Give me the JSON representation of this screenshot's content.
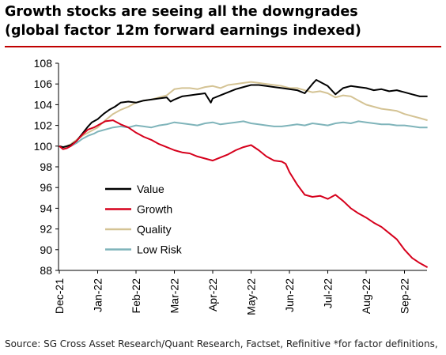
{
  "title_line1": "Growth stocks are seeing all the downgrades",
  "title_line2": "(global factor 12m forward earnings indexed)",
  "source": "Source: SG Cross Asset Research/Quant Research, Factset, Refinitive *for factor definitions,",
  "chart_data": {
    "type": "line",
    "ylim": [
      88,
      108
    ],
    "yticks": [
      88,
      90,
      92,
      94,
      96,
      98,
      100,
      102,
      104,
      106,
      108
    ],
    "xticks": [
      "Dec-21",
      "Jan-22",
      "Feb-22",
      "Mar-22",
      "Apr-22",
      "May-22",
      "Jun-22",
      "Jul-22",
      "Aug-22",
      "Sep-22"
    ],
    "grid": false,
    "legend": "left-bottom",
    "series": [
      {
        "name": "Value",
        "color": "#000000",
        "x": [
          0,
          0.1,
          0.2,
          0.3,
          0.45,
          0.6,
          0.75,
          0.85,
          1.0,
          1.15,
          1.3,
          1.45,
          1.6,
          1.8,
          2.0,
          2.2,
          2.4,
          2.6,
          2.8,
          2.9,
          3.0,
          3.2,
          3.4,
          3.6,
          3.8,
          3.95,
          4.0,
          4.2,
          4.4,
          4.6,
          4.8,
          5.0,
          5.2,
          5.4,
          5.6,
          5.8,
          6.0,
          6.2,
          6.4,
          6.6,
          6.7,
          6.8,
          7.0,
          7.2,
          7.4,
          7.6,
          7.8,
          8.0,
          8.2,
          8.4,
          8.6,
          8.8,
          9.0,
          9.2,
          9.4,
          9.6
        ],
        "y": [
          100.0,
          99.9,
          100.0,
          100.1,
          100.5,
          101.2,
          101.9,
          102.3,
          102.6,
          103.1,
          103.5,
          103.8,
          104.2,
          104.3,
          104.2,
          104.4,
          104.5,
          104.6,
          104.7,
          104.3,
          104.5,
          104.8,
          104.9,
          105.0,
          105.1,
          104.2,
          104.6,
          104.9,
          105.2,
          105.5,
          105.7,
          105.9,
          105.9,
          105.8,
          105.7,
          105.6,
          105.5,
          105.4,
          105.1,
          106.0,
          106.4,
          106.2,
          105.8,
          105.0,
          105.6,
          105.8,
          105.7,
          105.6,
          105.4,
          105.5,
          105.3,
          105.4,
          105.2,
          105.0,
          104.8,
          104.8
        ]
      },
      {
        "name": "Growth",
        "color": "#d6001c",
        "x": [
          0,
          0.1,
          0.2,
          0.3,
          0.45,
          0.6,
          0.75,
          0.9,
          1.0,
          1.2,
          1.4,
          1.6,
          1.8,
          2.0,
          2.2,
          2.4,
          2.6,
          2.8,
          3.0,
          3.2,
          3.4,
          3.6,
          3.8,
          4.0,
          4.2,
          4.4,
          4.6,
          4.8,
          5.0,
          5.2,
          5.4,
          5.6,
          5.8,
          5.9,
          6.0,
          6.2,
          6.4,
          6.6,
          6.8,
          7.0,
          7.2,
          7.4,
          7.6,
          7.8,
          8.0,
          8.2,
          8.4,
          8.6,
          8.8,
          9.0,
          9.2,
          9.4,
          9.6
        ],
        "y": [
          100.0,
          99.7,
          99.8,
          100.0,
          100.5,
          101.1,
          101.6,
          101.8,
          102.0,
          102.4,
          102.5,
          102.1,
          101.8,
          101.3,
          100.9,
          100.6,
          100.2,
          99.9,
          99.6,
          99.4,
          99.3,
          99.0,
          98.8,
          98.6,
          98.9,
          99.2,
          99.6,
          99.9,
          100.1,
          99.6,
          99.0,
          98.6,
          98.5,
          98.3,
          97.5,
          96.3,
          95.3,
          95.1,
          95.2,
          94.9,
          95.3,
          94.7,
          94.0,
          93.5,
          93.1,
          92.6,
          92.2,
          91.6,
          91.0,
          90.0,
          89.2,
          88.7,
          88.3
        ]
      },
      {
        "name": "Quality",
        "color": "#d4c394",
        "x": [
          0,
          0.1,
          0.2,
          0.3,
          0.45,
          0.6,
          0.75,
          0.9,
          1.0,
          1.2,
          1.4,
          1.6,
          1.8,
          2.0,
          2.2,
          2.4,
          2.6,
          2.8,
          3.0,
          3.2,
          3.4,
          3.6,
          3.8,
          4.0,
          4.2,
          4.4,
          4.6,
          4.8,
          5.0,
          5.2,
          5.4,
          5.6,
          5.8,
          6.0,
          6.2,
          6.4,
          6.6,
          6.8,
          7.0,
          7.2,
          7.4,
          7.6,
          7.8,
          8.0,
          8.2,
          8.4,
          8.6,
          8.8,
          9.0,
          9.2,
          9.4,
          9.6
        ],
        "y": [
          100.0,
          99.8,
          100.0,
          100.2,
          100.6,
          101.0,
          101.3,
          101.6,
          101.8,
          102.5,
          103.1,
          103.5,
          103.8,
          104.2,
          104.4,
          104.5,
          104.7,
          104.9,
          105.5,
          105.6,
          105.6,
          105.5,
          105.7,
          105.8,
          105.6,
          105.9,
          106.0,
          106.1,
          106.2,
          106.1,
          106.0,
          105.9,
          105.8,
          105.6,
          105.6,
          105.4,
          105.2,
          105.3,
          105.1,
          104.7,
          104.9,
          104.8,
          104.4,
          104.0,
          103.8,
          103.6,
          103.5,
          103.4,
          103.1,
          102.9,
          102.7,
          102.5
        ]
      },
      {
        "name": "Low Risk",
        "color": "#7fb4ba",
        "x": [
          0,
          0.1,
          0.2,
          0.3,
          0.45,
          0.6,
          0.75,
          0.9,
          1.0,
          1.2,
          1.4,
          1.6,
          1.8,
          2.0,
          2.2,
          2.4,
          2.6,
          2.8,
          3.0,
          3.2,
          3.4,
          3.6,
          3.8,
          4.0,
          4.2,
          4.4,
          4.6,
          4.8,
          5.0,
          5.2,
          5.4,
          5.6,
          5.8,
          6.0,
          6.2,
          6.4,
          6.6,
          6.8,
          7.0,
          7.2,
          7.4,
          7.6,
          7.8,
          8.0,
          8.2,
          8.4,
          8.6,
          8.8,
          9.0,
          9.2,
          9.4,
          9.6
        ],
        "y": [
          100.0,
          99.8,
          99.9,
          100.0,
          100.3,
          100.7,
          101.0,
          101.2,
          101.4,
          101.6,
          101.8,
          101.9,
          101.8,
          102.0,
          101.9,
          101.8,
          102.0,
          102.1,
          102.3,
          102.2,
          102.1,
          102.0,
          102.2,
          102.3,
          102.1,
          102.2,
          102.3,
          102.4,
          102.2,
          102.1,
          102.0,
          101.9,
          101.9,
          102.0,
          102.1,
          102.0,
          102.2,
          102.1,
          102.0,
          102.2,
          102.3,
          102.2,
          102.4,
          102.3,
          102.2,
          102.1,
          102.1,
          102.0,
          102.0,
          101.9,
          101.8,
          101.8
        ]
      }
    ]
  }
}
